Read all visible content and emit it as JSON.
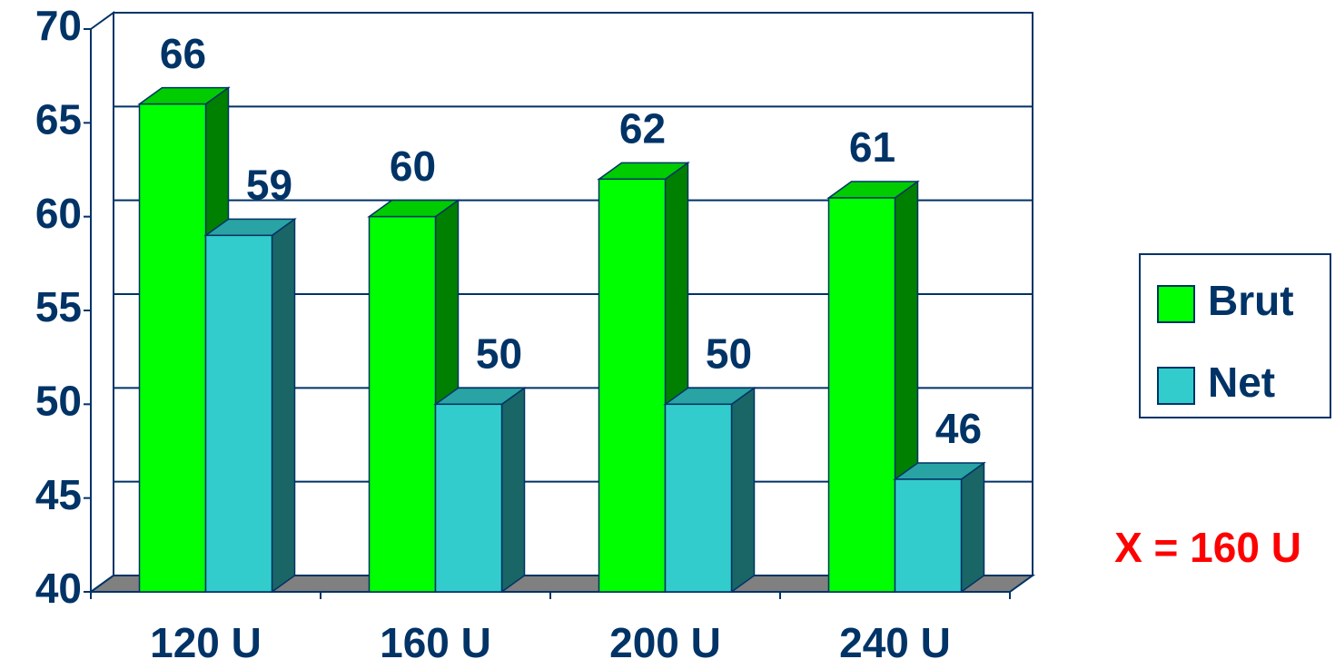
{
  "chart_data": {
    "type": "bar3d",
    "categories": [
      "120 U",
      "160 U",
      "200 U",
      "240 U"
    ],
    "series": [
      {
        "name": "Brut",
        "color": "#00ff00",
        "values": [
          66,
          60,
          62,
          61
        ]
      },
      {
        "name": "Net",
        "color": "#33cccc",
        "values": [
          59,
          50,
          50,
          46
        ]
      }
    ],
    "ylim": [
      40,
      70
    ],
    "yticks": [
      40,
      45,
      50,
      55,
      60,
      65,
      70
    ],
    "grid": true,
    "legend": "right",
    "annotations": [
      "X = 160 U"
    ]
  }
}
